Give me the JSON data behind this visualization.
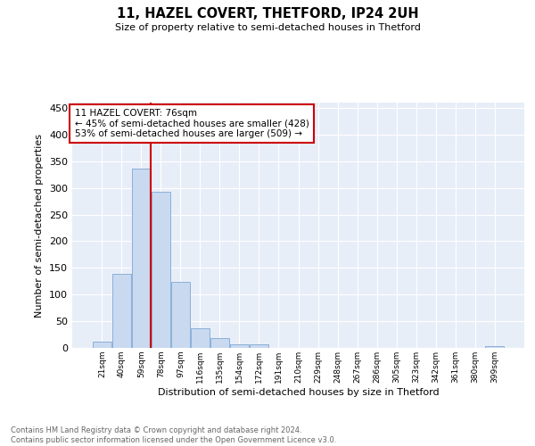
{
  "title": "11, HAZEL COVERT, THETFORD, IP24 2UH",
  "subtitle": "Size of property relative to semi-detached houses in Thetford",
  "xlabel": "Distribution of semi-detached houses by size in Thetford",
  "ylabel": "Number of semi-detached properties",
  "bar_labels": [
    "21sqm",
    "40sqm",
    "59sqm",
    "78sqm",
    "97sqm",
    "116sqm",
    "135sqm",
    "154sqm",
    "172sqm",
    "191sqm",
    "210sqm",
    "229sqm",
    "248sqm",
    "267sqm",
    "286sqm",
    "305sqm",
    "323sqm",
    "342sqm",
    "361sqm",
    "380sqm",
    "399sqm"
  ],
  "bar_values": [
    12,
    139,
    336,
    293,
    124,
    36,
    19,
    6,
    7,
    0,
    0,
    0,
    0,
    0,
    0,
    0,
    0,
    0,
    0,
    0,
    4
  ],
  "bar_color": "#c9d9f0",
  "bar_edge_color": "#7fa8d5",
  "background_color": "#e8eef8",
  "grid_color": "#ffffff",
  "vline_color": "#cc0000",
  "vline_x_index": 3,
  "annotation_line1": "11 HAZEL COVERT: 76sqm",
  "annotation_line2": "← 45% of semi-detached houses are smaller (428)",
  "annotation_line3": "53% of semi-detached houses are larger (509) →",
  "annotation_box_color": "#ffffff",
  "annotation_box_edge": "#cc0000",
  "footer_text": "Contains HM Land Registry data © Crown copyright and database right 2024.\nContains public sector information licensed under the Open Government Licence v3.0.",
  "ylim": [
    0,
    460
  ],
  "yticks": [
    0,
    50,
    100,
    150,
    200,
    250,
    300,
    350,
    400,
    450
  ]
}
